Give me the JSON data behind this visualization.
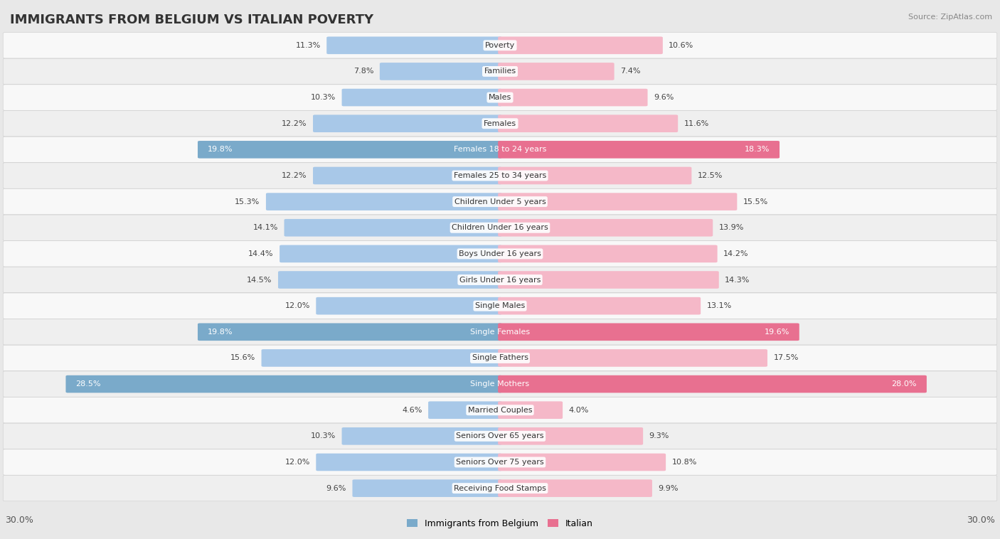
{
  "title": "IMMIGRANTS FROM BELGIUM VS ITALIAN POVERTY",
  "source": "Source: ZipAtlas.com",
  "categories": [
    "Poverty",
    "Families",
    "Males",
    "Females",
    "Females 18 to 24 years",
    "Females 25 to 34 years",
    "Children Under 5 years",
    "Children Under 16 years",
    "Boys Under 16 years",
    "Girls Under 16 years",
    "Single Males",
    "Single Females",
    "Single Fathers",
    "Single Mothers",
    "Married Couples",
    "Seniors Over 65 years",
    "Seniors Over 75 years",
    "Receiving Food Stamps"
  ],
  "belgium_values": [
    11.3,
    7.8,
    10.3,
    12.2,
    19.8,
    12.2,
    15.3,
    14.1,
    14.4,
    14.5,
    12.0,
    19.8,
    15.6,
    28.5,
    4.6,
    10.3,
    12.0,
    9.6
  ],
  "italian_values": [
    10.6,
    7.4,
    9.6,
    11.6,
    18.3,
    12.5,
    15.5,
    13.9,
    14.2,
    14.3,
    13.1,
    19.6,
    17.5,
    28.0,
    4.0,
    9.3,
    10.8,
    9.9
  ],
  "belgium_color_normal": "#a8c8e8",
  "italian_color_normal": "#f5b8c8",
  "belgium_color_highlight": "#7aaaca",
  "italian_color_highlight": "#e87090",
  "highlight_rows": [
    4,
    11,
    13
  ],
  "max_value": 30.0,
  "fig_bg": "#e8e8e8",
  "row_bg_even": "#f8f8f8",
  "row_bg_odd": "#efefef",
  "legend_belgium": "Immigrants from Belgium",
  "legend_italian": "Italian",
  "bottom_label": "30.0%",
  "title_fontsize": 13,
  "label_fontsize": 8,
  "value_fontsize": 8
}
